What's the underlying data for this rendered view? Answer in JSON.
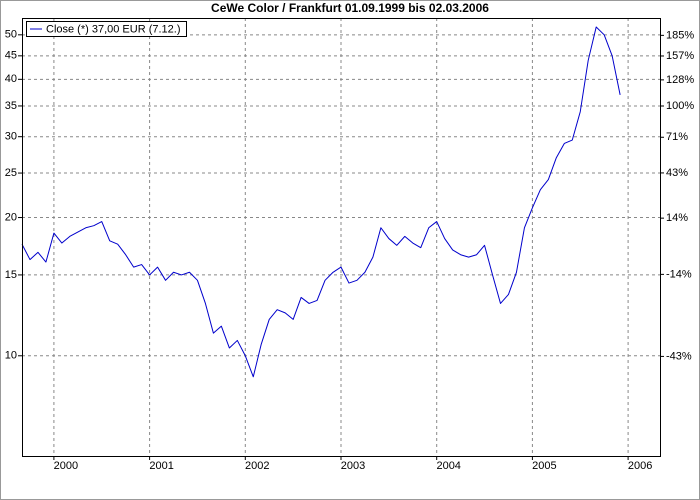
{
  "chart_data": {
    "type": "line",
    "title": "CeWe Color / Frankfurt 01.09.1999 bis 02.03.2006",
    "x": [
      "1999-09",
      "1999-10",
      "1999-11",
      "1999-12",
      "2000-01",
      "2000-02",
      "2000-03",
      "2000-04",
      "2000-05",
      "2000-06",
      "2000-07",
      "2000-08",
      "2000-09",
      "2000-10",
      "2000-11",
      "2000-12",
      "2001-01",
      "2001-02",
      "2001-03",
      "2001-04",
      "2001-05",
      "2001-06",
      "2001-07",
      "2001-08",
      "2001-09",
      "2001-10",
      "2001-11",
      "2001-12",
      "2002-01",
      "2002-02",
      "2002-03",
      "2002-04",
      "2002-05",
      "2002-06",
      "2002-07",
      "2002-08",
      "2002-09",
      "2002-10",
      "2002-11",
      "2002-12",
      "2003-01",
      "2003-02",
      "2003-03",
      "2003-04",
      "2003-05",
      "2003-06",
      "2003-07",
      "2003-08",
      "2003-09",
      "2003-10",
      "2003-11",
      "2003-12",
      "2004-01",
      "2004-02",
      "2004-03",
      "2004-04",
      "2004-05",
      "2004-06",
      "2004-07",
      "2004-08",
      "2004-09",
      "2004-10",
      "2004-11",
      "2004-12",
      "2005-01",
      "2005-02",
      "2005-03",
      "2005-04",
      "2005-05",
      "2005-06",
      "2005-07",
      "2005-08",
      "2005-09",
      "2005-10",
      "2005-11",
      "2005-12"
    ],
    "series": [
      {
        "name": "Close (*) 37,00 EUR (7.12.)",
        "color": "#0000cc",
        "values": [
          17.5,
          16.2,
          16.8,
          16.0,
          18.5,
          17.6,
          18.2,
          18.6,
          19.0,
          19.2,
          19.6,
          17.8,
          17.5,
          16.6,
          15.6,
          15.8,
          15.0,
          15.6,
          14.6,
          15.2,
          15.0,
          15.2,
          14.6,
          13.0,
          11.2,
          11.6,
          10.4,
          10.8,
          10.0,
          9.0,
          10.6,
          12.0,
          12.6,
          12.4,
          12.0,
          13.4,
          13.0,
          13.2,
          14.6,
          15.2,
          15.6,
          14.4,
          14.6,
          15.2,
          16.4,
          19.0,
          18.0,
          17.4,
          18.2,
          17.6,
          17.2,
          19.0,
          19.6,
          18.0,
          17.0,
          16.6,
          16.4,
          16.6,
          17.4,
          15.0,
          13.0,
          13.6,
          15.2,
          19.0,
          21.0,
          23.0,
          24.2,
          27.0,
          29.0,
          29.5,
          34.0,
          44.0,
          52.0,
          50.0,
          45.0,
          37.0
        ]
      }
    ],
    "xlim": [
      "1999-09",
      "2006-05"
    ],
    "xticks": [
      "2000",
      "2001",
      "2002",
      "2003",
      "2004",
      "2005",
      "2006"
    ],
    "ylim": [
      6.05,
      54.4
    ],
    "ylog": true,
    "yticks": [
      10,
      15,
      20,
      25,
      30,
      35,
      40,
      45,
      50
    ],
    "y2lim": [
      -65.4,
      210.9
    ],
    "y2scale": "log-return",
    "y2ticks": [
      {
        "value": 185,
        "label": "185%"
      },
      {
        "value": 157,
        "label": "157%"
      },
      {
        "value": 128,
        "label": "128%"
      },
      {
        "value": 100,
        "label": "100%"
      },
      {
        "value": 71,
        "label": "71%"
      },
      {
        "value": 43,
        "label": "43%"
      },
      {
        "value": 14,
        "label": "14%"
      },
      {
        "value": -14,
        "label": "-14%"
      },
      {
        "value": -43,
        "label": "-43%"
      }
    ],
    "grid": true,
    "legend": "upper-left"
  }
}
